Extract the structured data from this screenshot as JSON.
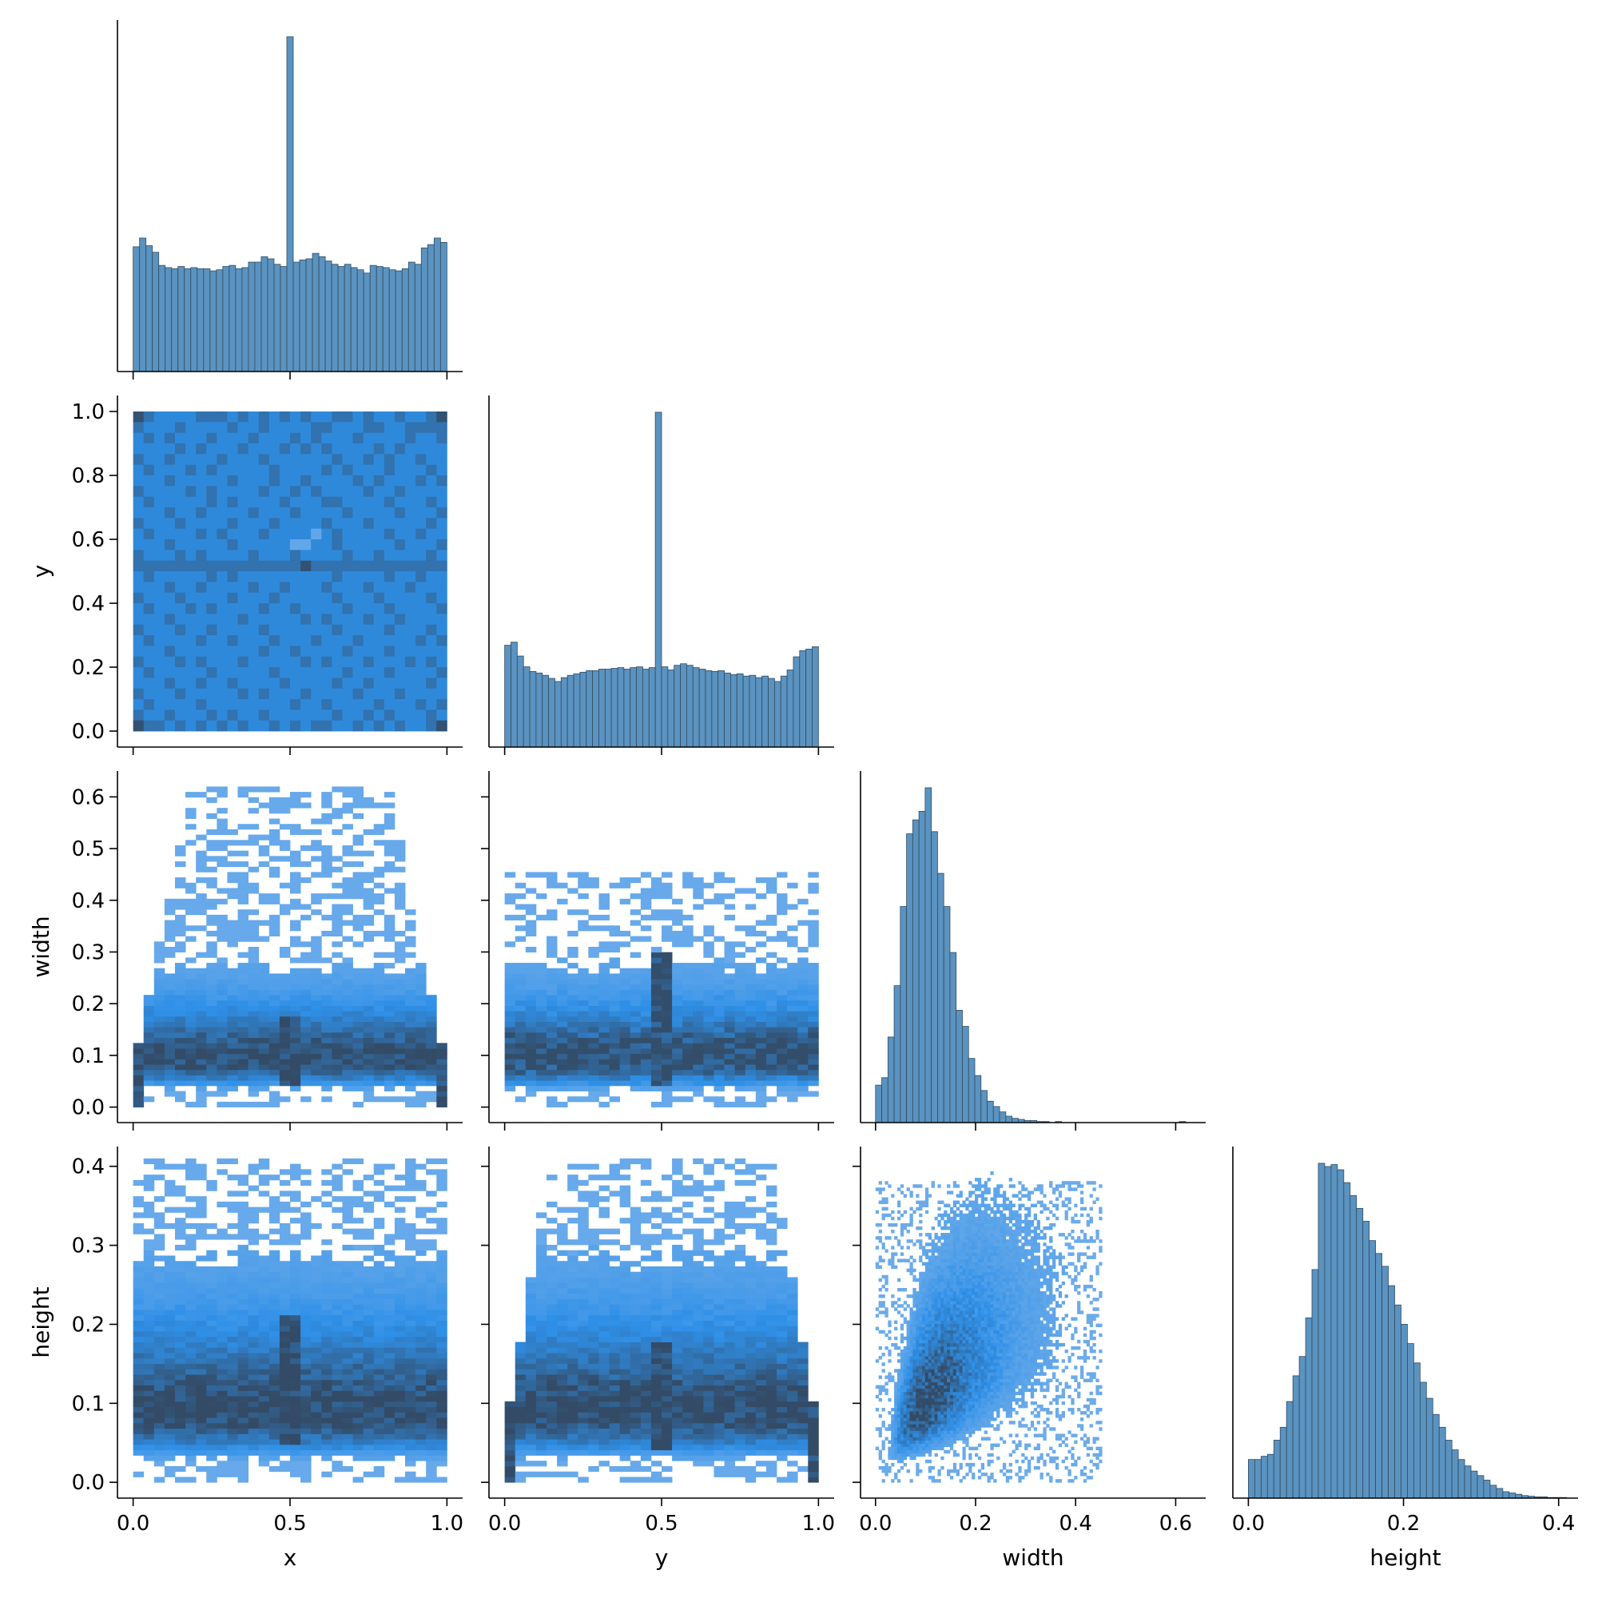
{
  "figure": {
    "background": "#ffffff"
  },
  "colors": {
    "hist_fill": "#5b93c0",
    "hist_edge": "#2f4a60",
    "heat_low": "#aec9ec",
    "heat_mid": "#2f90e8",
    "heat_high": "#334b66",
    "axis": "#000000"
  },
  "chart_data": [
    {
      "type": "bar",
      "name": "hist-x",
      "grid": false,
      "xlim": [
        -0.05,
        1.05
      ],
      "bin_edges_range": [
        0.0,
        1.0
      ],
      "values": [
        114,
        122,
        115,
        109,
        97,
        95,
        94,
        96,
        94,
        95,
        94,
        94,
        92,
        93,
        96,
        97,
        94,
        95,
        100,
        100,
        105,
        103,
        98,
        96,
        306,
        100,
        102,
        103,
        108,
        105,
        101,
        98,
        96,
        98,
        95,
        93,
        90,
        97,
        96,
        95,
        93,
        92,
        94,
        100,
        98,
        113,
        116,
        122,
        118
      ]
    },
    {
      "type": "heatmap",
      "name": "x-vs-y",
      "grid": false,
      "xlim": [
        -0.05,
        1.05
      ],
      "ylim": [
        -0.05,
        1.05
      ],
      "xticks": [
        "0.0",
        "0.5",
        "1.0"
      ],
      "yticks": [
        "0.0",
        "0.2",
        "0.4",
        "0.6",
        "0.8",
        "1.0"
      ],
      "ylabel": "y",
      "x_range": [
        0.0,
        1.0
      ],
      "y_range": [
        0.0,
        1.0
      ],
      "x_bins": 30,
      "y_bins": 30,
      "level_rows": [
        "432222333232323232233232232234",
        "322232222322322223322233223333",
        "232322232223222323222322223223",
        "222232322232223232322223232222",
        "322322223222322222232232322322",
        "232223232222232222323222322232",
        "222322222322232232222323222323",
        "322223232222322323222232232222",
        "232222232322223222332222322232",
        "222322322223222322223222232223",
        "322232222322232222322232222232",
        "232222323222322221232222322322",
        "222322222322222112232222232223",
        "322232322223222322223223222232",
        "333333333333333343333333333333",
        "232222232322222222232222322322",
        "222322322223223222322232223222",
        "322232222322232222232223222232",
        "232223232222322322223222322223",
        "222322222232222232322232232222",
        "322232232222322222232222322232",
        "232222322322232223222322222323",
        "222322222222322322223222322222",
        "322232322232222232322232223232",
        "232222232222232222223222322223",
        "222322322322223222232232222232",
        "322232222232322232222322232222",
        "232222322222222322322223222323",
        "322322232322322222232232322232",
        "433232323232232323322323232234"
      ]
    },
    {
      "type": "heatmap",
      "name": "x-vs-width",
      "grid": false,
      "xlim": [
        -0.05,
        1.05
      ],
      "ylim": [
        -0.03,
        0.65
      ],
      "xticks": [
        "0.0",
        "0.5",
        "1.0"
      ],
      "yticks": [
        "0.0",
        "0.1",
        "0.2",
        "0.3",
        "0.4",
        "0.5",
        "0.6"
      ],
      "ylabel": "width",
      "x_range": [
        0.0,
        1.0
      ],
      "y_range": [
        0.0,
        0.62
      ],
      "x_bins": 30,
      "y_bins": 60
    },
    {
      "type": "bar",
      "name": "hist-y",
      "grid": false,
      "xlim": [
        -0.05,
        1.05
      ],
      "bin_edges_range": [
        0.0,
        1.0
      ],
      "values": [
        132,
        136,
        118,
        104,
        98,
        96,
        93,
        89,
        85,
        90,
        93,
        95,
        97,
        99,
        99,
        101,
        101,
        102,
        103,
        101,
        103,
        104,
        101,
        103,
        434,
        104,
        100,
        106,
        108,
        106,
        103,
        101,
        99,
        98,
        99,
        96,
        94,
        95,
        92,
        93,
        90,
        92,
        89,
        85,
        92,
        100,
        117,
        125,
        127,
        130
      ]
    },
    {
      "type": "heatmap",
      "name": "y-vs-width",
      "grid": false,
      "xlim": [
        -0.05,
        1.05
      ],
      "ylim": [
        -0.03,
        0.65
      ],
      "xticks": [
        "0.0",
        "0.5",
        "1.0"
      ],
      "yticks": [
        "0.0",
        "0.1",
        "0.2",
        "0.3",
        "0.4",
        "0.5",
        "0.6"
      ],
      "x_range": [
        0.0,
        1.0
      ],
      "y_range": [
        0.0,
        0.62
      ],
      "x_bins": 30,
      "y_bins": 60
    },
    {
      "type": "heatmap",
      "name": "x-vs-height",
      "grid": false,
      "xlim": [
        -0.05,
        1.05
      ],
      "ylim": [
        -0.02,
        0.425
      ],
      "xticks": [
        "0.0",
        "0.5",
        "1.0"
      ],
      "yticks": [
        "0.0",
        "0.1",
        "0.2",
        "0.3",
        "0.4"
      ],
      "xlabel": "x",
      "ylabel": "height",
      "x_range": [
        0.0,
        1.0
      ],
      "y_range": [
        0.0,
        0.41
      ],
      "x_bins": 30,
      "y_bins": 60
    },
    {
      "type": "heatmap",
      "name": "y-vs-height",
      "grid": false,
      "xlim": [
        -0.05,
        1.05
      ],
      "ylim": [
        -0.02,
        0.425
      ],
      "xticks": [
        "0.0",
        "0.5",
        "1.0"
      ],
      "yticks": [
        "0.0",
        "0.1",
        "0.2",
        "0.3",
        "0.4"
      ],
      "xlabel": "y",
      "x_range": [
        0.0,
        1.0
      ],
      "y_range": [
        0.0,
        0.41
      ],
      "x_bins": 30,
      "y_bins": 60
    },
    {
      "type": "bar",
      "name": "hist-width",
      "grid": false,
      "xlim": [
        -0.03,
        0.66
      ],
      "bin_edges_range": [
        0.0,
        0.62
      ],
      "values": [
        35,
        42,
        80,
        128,
        202,
        270,
        283,
        291,
        313,
        272,
        233,
        202,
        159,
        105,
        90,
        60,
        44,
        30,
        20,
        15,
        10,
        6,
        4,
        3,
        2,
        2,
        1,
        1,
        0,
        1,
        0,
        0,
        0,
        0,
        0,
        0,
        0,
        0,
        0,
        0,
        0,
        0,
        0,
        0,
        0,
        0,
        0,
        0,
        0,
        1
      ]
    },
    {
      "type": "heatmap",
      "name": "width-vs-height",
      "grid": false,
      "xlim": [
        -0.03,
        0.66
      ],
      "ylim": [
        -0.02,
        0.425
      ],
      "xticks": [
        "0.0",
        "0.2",
        "0.4",
        "0.6"
      ],
      "yticks": [
        "0.0",
        "0.1",
        "0.2",
        "0.3",
        "0.4"
      ],
      "xlabel": "width",
      "x_range": [
        0.0,
        0.62
      ],
      "y_range": [
        0.0,
        0.41
      ],
      "x_bins": 100,
      "y_bins": 100,
      "positive_correlation": true
    },
    {
      "type": "bar",
      "name": "hist-height",
      "grid": false,
      "xlim": [
        -0.02,
        0.425
      ],
      "xticks": [
        "0.0",
        "0.2",
        "0.4"
      ],
      "xlabel": "height",
      "bin_edges_range": [
        0.0,
        0.41
      ],
      "values": [
        60,
        60,
        65,
        68,
        90,
        110,
        150,
        190,
        220,
        280,
        355,
        520,
        515,
        518,
        510,
        490,
        470,
        450,
        430,
        400,
        380,
        360,
        330,
        300,
        270,
        240,
        210,
        180,
        155,
        130,
        110,
        90,
        75,
        60,
        50,
        42,
        35,
        28,
        20,
        15,
        10,
        8,
        6,
        4,
        3,
        2,
        2,
        1,
        1,
        1
      ]
    }
  ]
}
